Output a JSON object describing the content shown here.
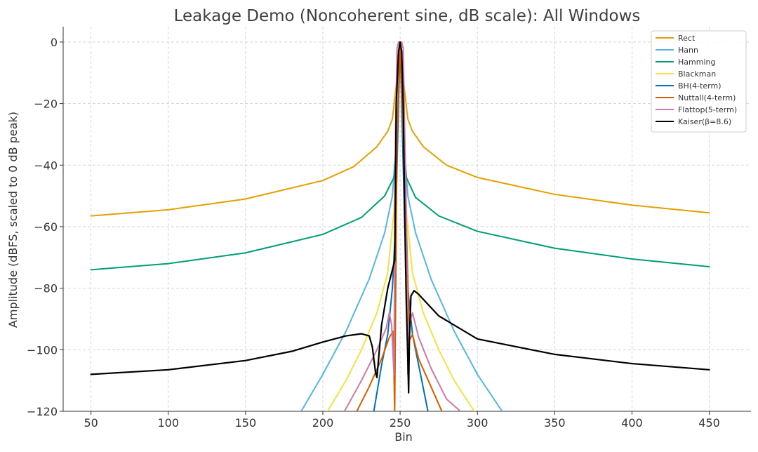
{
  "chart_data": {
    "type": "line",
    "title": "Leakage Demo (Noncoherent sine, dB scale): All Windows",
    "xlabel": "Bin",
    "ylabel": "Amplitude (dBFS, scaled to 0 dB peak)",
    "xlim": [
      32,
      477
    ],
    "ylim": [
      -120,
      5
    ],
    "xticks": [
      50,
      100,
      150,
      200,
      250,
      300,
      350,
      400,
      450
    ],
    "yticks": [
      -120,
      -100,
      -80,
      -60,
      -40,
      -20,
      0
    ],
    "xtick_labels": [
      "50",
      "100",
      "150",
      "200",
      "250",
      "300",
      "350",
      "400",
      "450"
    ],
    "ytick_labels": [
      "−120",
      "−100",
      "−80",
      "−60",
      "−40",
      "−20",
      "0"
    ],
    "grid": true,
    "legend_position": "top-right",
    "series": [
      {
        "name": "Rect",
        "color": "#E69F00",
        "x": [
          50,
          100,
          150,
          200,
          220,
          235,
          242,
          245,
          248,
          250,
          252,
          255,
          258,
          265,
          280,
          300,
          350,
          400,
          450
        ],
        "y": [
          -56.5,
          -54.5,
          -51,
          -45,
          -40.5,
          -34,
          -29,
          -25,
          -12,
          0,
          -12,
          -25,
          -29,
          -34,
          -40,
          -44,
          -49.5,
          -53,
          -55.5
        ]
      },
      {
        "name": "Hann",
        "color": "#56B4E9",
        "x": [
          186,
          200,
          215,
          230,
          240,
          245,
          248,
          250,
          252,
          255,
          260,
          270,
          285,
          300,
          316
        ],
        "y": [
          -120,
          -108,
          -94,
          -77,
          -62,
          -50,
          -30,
          0,
          -30,
          -50,
          -62,
          -77,
          -94,
          -108,
          -120
        ]
      },
      {
        "name": "Hamming",
        "color": "#009E73",
        "x": [
          50,
          100,
          150,
          200,
          225,
          240,
          246,
          248,
          250,
          252,
          254,
          260,
          275,
          300,
          350,
          400,
          450
        ],
        "y": [
          -74,
          -72,
          -68.5,
          -62.5,
          -57,
          -50,
          -44,
          -30,
          0,
          -30,
          -44,
          -50.5,
          -56.5,
          -61.5,
          -67,
          -70.5,
          -73
        ]
      },
      {
        "name": "Blackman",
        "color": "#F0E442",
        "x": [
          203,
          215,
          225,
          235,
          242,
          246,
          248,
          250,
          252,
          254,
          258,
          265,
          275,
          285,
          298
        ],
        "y": [
          -120,
          -110,
          -100,
          -88,
          -75,
          -55,
          -30,
          0,
          -30,
          -55,
          -75,
          -88,
          -100,
          -110,
          -120
        ]
      },
      {
        "name": "BH(4-term)",
        "color": "#0072B2",
        "x": [
          233,
          238,
          242,
          245,
          247,
          248.5,
          250,
          251.5,
          253,
          255,
          258,
          262,
          268
        ],
        "y": [
          -120,
          -105,
          -95,
          -80,
          -60,
          -30,
          0,
          -30,
          -60,
          -80,
          -95,
          -105,
          -120
        ]
      },
      {
        "name": "Nuttall(4-term)",
        "color": "#D55E00",
        "x": [
          222,
          230,
          238,
          243,
          245.5,
          246.5,
          248,
          250,
          252,
          254,
          256,
          258,
          262,
          270,
          277
        ],
        "y": [
          -120,
          -112,
          -103,
          -96,
          -94,
          -120,
          -30,
          0,
          -30,
          -58,
          -97,
          -95,
          -103,
          -112,
          -120
        ]
      },
      {
        "name": "Flattop(5-term)",
        "color": "#CC79A7",
        "x": [
          214,
          225,
          235,
          241,
          243,
          244.5,
          246,
          247,
          248,
          249,
          250,
          251,
          252,
          253,
          254,
          255,
          256,
          258,
          259,
          262,
          270,
          280,
          289
        ],
        "y": [
          -120,
          -110,
          -100,
          -93,
          -88,
          -92,
          -108,
          -30,
          -2,
          0,
          0,
          0,
          -2,
          -30,
          -55,
          -108,
          -92,
          -88,
          -90,
          -96,
          -106,
          -116,
          -120
        ]
      },
      {
        "name": "Kaiser(β=8.6)",
        "color": "#000000",
        "x": [
          50,
          100,
          150,
          180,
          200,
          215,
          225,
          230,
          232,
          234,
          235,
          238,
          242,
          245,
          246.5,
          247.5,
          249,
          250,
          251,
          252,
          253,
          254,
          255,
          255.5,
          256,
          257,
          259,
          262,
          275,
          300,
          350,
          400,
          450
        ],
        "y": [
          -108,
          -106.5,
          -103.5,
          -100.5,
          -97.5,
          -95.5,
          -94.8,
          -95.5,
          -99,
          -107,
          -109,
          -92,
          -80,
          -74,
          -71,
          -20,
          -3,
          0,
          -3,
          -20,
          -57,
          -85,
          -103,
          -114,
          -96,
          -82.5,
          -80.8,
          -82,
          -89,
          -96.5,
          -101.5,
          -104.5,
          -106.5
        ]
      }
    ]
  }
}
